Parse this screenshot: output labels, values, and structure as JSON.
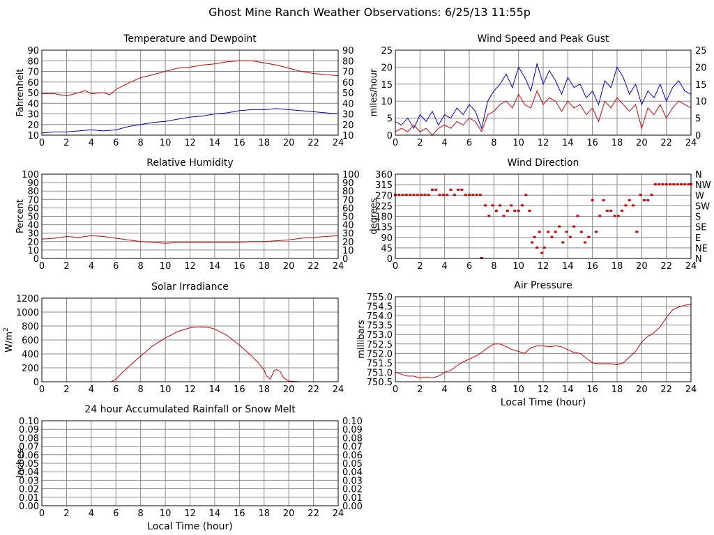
{
  "page_title": "Ghost Mine Ranch Weather Observations: 6/25/13 11:55p",
  "colors": {
    "primary": "#cc0000",
    "secondary": "#0000cc",
    "grid": "#888888",
    "frame": "#000000"
  },
  "chart_data": [
    {
      "id": "temp",
      "type": "line",
      "title": "Temperature and Dewpoint",
      "ylabel": "Fahrenheit",
      "xlabel": "",
      "xlim": [
        0,
        24
      ],
      "ylim": [
        10,
        90
      ],
      "grid": true,
      "x_ticks": [
        "0",
        "2",
        "4",
        "6",
        "8",
        "10",
        "12",
        "14",
        "16",
        "18",
        "20",
        "22",
        "24"
      ],
      "y_ticks": [
        "10",
        "20",
        "30",
        "40",
        "50",
        "60",
        "70",
        "80",
        "90"
      ],
      "y_ticks_right": [
        "10",
        "20",
        "30",
        "40",
        "50",
        "60",
        "70",
        "80",
        "90"
      ],
      "series": [
        {
          "color": "#cc0000",
          "x": [
            0,
            1,
            2,
            3,
            3.5,
            4,
            5,
            5.5,
            6,
            7,
            8,
            9,
            10,
            11,
            12,
            13,
            14,
            15,
            16,
            17,
            18,
            19,
            20,
            21,
            22,
            23,
            24
          ],
          "y": [
            49,
            49,
            47,
            50,
            52,
            49,
            50,
            48,
            53,
            59,
            64,
            67,
            70,
            73,
            74,
            76,
            77,
            79,
            80,
            80,
            78,
            76,
            73,
            70,
            68,
            67,
            66
          ]
        },
        {
          "color": "#0000cc",
          "x": [
            0,
            1,
            2,
            3,
            4,
            5,
            6,
            7,
            8,
            9,
            10,
            11,
            12,
            13,
            14,
            15,
            16,
            17,
            18,
            19,
            20,
            21,
            22,
            23,
            24
          ],
          "y": [
            12,
            13,
            13,
            14,
            15,
            14,
            15,
            18,
            20,
            22,
            23,
            25,
            27,
            28,
            30,
            31,
            33,
            34,
            34,
            35,
            34,
            33,
            32,
            31,
            30
          ]
        }
      ]
    },
    {
      "id": "wind",
      "type": "line",
      "title": "Wind Speed and Peak Gust",
      "ylabel": "miles/hour",
      "xlabel": "",
      "xlim": [
        0,
        24
      ],
      "ylim": [
        0,
        25
      ],
      "grid": true,
      "x_ticks": [
        "0",
        "2",
        "4",
        "6",
        "8",
        "10",
        "12",
        "14",
        "16",
        "18",
        "20",
        "22",
        "24"
      ],
      "y_ticks": [
        "0",
        "5",
        "10",
        "15",
        "20",
        "25"
      ],
      "y_ticks_right": [
        "0",
        "5",
        "10",
        "15",
        "20",
        "25"
      ],
      "series": [
        {
          "color": "#0000cc",
          "x": [
            0,
            0.5,
            1,
            1.5,
            2,
            2.5,
            3,
            3.5,
            4,
            4.5,
            5,
            5.5,
            6,
            6.5,
            7,
            7.5,
            8,
            8.5,
            9,
            9.5,
            10,
            10.5,
            11,
            11.5,
            12,
            12.5,
            13,
            13.5,
            14,
            14.5,
            15,
            15.5,
            16,
            16.5,
            17,
            17.5,
            18,
            18.5,
            19,
            19.5,
            20,
            20.5,
            21,
            21.5,
            22,
            22.5,
            23,
            23.5,
            24
          ],
          "y": [
            4,
            3,
            5,
            2,
            6,
            4,
            7,
            3,
            6,
            5,
            8,
            6,
            9,
            7,
            2,
            10,
            13,
            15,
            18,
            14,
            20,
            17,
            13,
            21,
            15,
            19,
            16,
            12,
            17,
            14,
            15,
            11,
            13,
            9,
            16,
            14,
            20,
            17,
            12,
            15,
            9,
            13,
            11,
            15,
            10,
            14,
            16,
            13,
            12
          ]
        },
        {
          "color": "#cc0000",
          "x": [
            0,
            0.5,
            1,
            1.5,
            2,
            2.5,
            3,
            3.5,
            4,
            4.5,
            5,
            5.5,
            6,
            6.5,
            7,
            7.5,
            8,
            8.5,
            9,
            9.5,
            10,
            10.5,
            11,
            11.5,
            12,
            12.5,
            13,
            13.5,
            14,
            14.5,
            15,
            15.5,
            16,
            16.5,
            17,
            17.5,
            18,
            18.5,
            19,
            19.5,
            20,
            20.5,
            21,
            21.5,
            22,
            22.5,
            23,
            23.5,
            24
          ],
          "y": [
            1,
            2,
            1,
            3,
            1,
            2,
            0,
            2,
            3,
            2,
            4,
            3,
            5,
            4,
            1,
            6,
            7,
            9,
            10,
            8,
            12,
            9,
            8,
            13,
            9,
            11,
            10,
            7,
            10,
            8,
            9,
            6,
            8,
            4,
            10,
            8,
            11,
            9,
            7,
            9,
            2,
            8,
            6,
            9,
            5,
            8,
            10,
            9,
            8
          ]
        }
      ]
    },
    {
      "id": "rh",
      "type": "line",
      "title": "Relative Humidity",
      "ylabel": "Percent",
      "xlabel": "",
      "xlim": [
        0,
        24
      ],
      "ylim": [
        0,
        100
      ],
      "grid": true,
      "x_ticks": [
        "0",
        "2",
        "4",
        "6",
        "8",
        "10",
        "12",
        "14",
        "16",
        "18",
        "20",
        "22",
        "24"
      ],
      "y_ticks": [
        "0",
        "10",
        "20",
        "30",
        "40",
        "50",
        "60",
        "70",
        "80",
        "90",
        "100"
      ],
      "y_ticks_right": [
        "0",
        "10",
        "20",
        "30",
        "40",
        "50",
        "60",
        "70",
        "80",
        "90",
        "100"
      ],
      "series": [
        {
          "color": "#cc0000",
          "x": [
            0,
            1,
            2,
            3,
            4,
            5,
            6,
            7,
            8,
            9,
            10,
            11,
            12,
            13,
            14,
            15,
            16,
            17,
            18,
            19,
            20,
            21,
            22,
            23,
            24
          ],
          "y": [
            23,
            24,
            26,
            25,
            27,
            26,
            24,
            22,
            20,
            19,
            18,
            19,
            19,
            19,
            19,
            19,
            19,
            20,
            20,
            21,
            22,
            24,
            25,
            26,
            27
          ]
        }
      ]
    },
    {
      "id": "wdir",
      "type": "scatter",
      "title": "Wind Direction",
      "ylabel": "degrees",
      "xlabel": "",
      "xlim": [
        0,
        24
      ],
      "ylim": [
        0,
        360
      ],
      "grid": true,
      "x_ticks": [
        "0",
        "2",
        "4",
        "6",
        "8",
        "10",
        "12",
        "14",
        "16",
        "18",
        "20",
        "22",
        "24"
      ],
      "y_ticks": [
        "0",
        "45",
        "90",
        "135",
        "180",
        "225",
        "270",
        "315",
        "360"
      ],
      "y_ticks_right": [
        "N",
        "NE",
        "E",
        "SE",
        "S",
        "SW",
        "W",
        "NW",
        "N"
      ],
      "series": [
        {
          "color": "#cc0000",
          "x": [
            0,
            0.3,
            0.6,
            0.9,
            1.2,
            1.5,
            1.8,
            2.1,
            2.4,
            2.7,
            3,
            3.3,
            3.6,
            3.9,
            4.2,
            4.5,
            4.8,
            5.1,
            5.4,
            5.7,
            6,
            6.3,
            6.6,
            6.9,
            7,
            7.3,
            7.6,
            7.9,
            8.2,
            8.5,
            8.8,
            9.1,
            9.4,
            9.7,
            10,
            10.3,
            10.6,
            10.9,
            11.1,
            11.3,
            11.5,
            11.7,
            11.9,
            12.1,
            12.4,
            12.7,
            13,
            13.3,
            13.6,
            13.9,
            14.2,
            14.5,
            14.8,
            15.1,
            15.4,
            15.7,
            16,
            16.3,
            16.6,
            16.9,
            17.2,
            17.5,
            17.8,
            18.1,
            18.4,
            18.7,
            19,
            19.3,
            19.6,
            19.9,
            20.2,
            20.5,
            20.8,
            21.1,
            21.4,
            21.7,
            22,
            22.3,
            22.6,
            22.9,
            23.2,
            23.5,
            23.8,
            24
          ],
          "y": [
            270,
            270,
            270,
            270,
            270,
            270,
            270,
            270,
            270,
            270,
            292,
            292,
            270,
            270,
            270,
            292,
            270,
            292,
            292,
            270,
            270,
            270,
            270,
            270,
            0,
            225,
            180,
            225,
            202,
            225,
            180,
            202,
            225,
            202,
            202,
            225,
            270,
            202,
            67,
            90,
            45,
            112,
            22,
            45,
            112,
            90,
            112,
            135,
            67,
            112,
            90,
            135,
            180,
            112,
            67,
            90,
            247,
            112,
            180,
            247,
            202,
            202,
            180,
            180,
            202,
            225,
            247,
            225,
            112,
            270,
            247,
            247,
            270,
            315,
            315,
            315,
            315,
            315,
            315,
            315,
            315,
            315,
            315,
            315
          ]
        }
      ]
    },
    {
      "id": "solar",
      "type": "area",
      "title": "Solar Irradiance",
      "ylabel": "W/m",
      "ylabel_sup": "2",
      "xlabel": "",
      "xlim": [
        0,
        24
      ],
      "ylim": [
        0,
        1300
      ],
      "grid": true,
      "x_ticks": [
        "0",
        "2",
        "4",
        "6",
        "8",
        "10",
        "12",
        "14",
        "16",
        "18",
        "20",
        "22",
        "24"
      ],
      "y_ticks": [
        "0",
        "200",
        "400",
        "600",
        "800",
        "1000",
        "1200"
      ],
      "series": [
        {
          "color": "#cc0000",
          "x": [
            0,
            1,
            2,
            3,
            4,
            5,
            5.6,
            6,
            6.5,
            7,
            8,
            9,
            10,
            11,
            12,
            12.5,
            13,
            13.5,
            14,
            15,
            16,
            17,
            17.5,
            18,
            18.2,
            18.5,
            18.8,
            19,
            19.3,
            19.6,
            20,
            21,
            22,
            23,
            24
          ],
          "y": [
            0,
            0,
            0,
            0,
            0,
            0,
            0,
            40,
            140,
            230,
            400,
            560,
            680,
            780,
            840,
            850,
            850,
            845,
            820,
            720,
            570,
            400,
            300,
            180,
            90,
            40,
            170,
            190,
            160,
            60,
            10,
            0,
            0,
            0,
            0
          ]
        }
      ]
    },
    {
      "id": "press",
      "type": "line",
      "title": "Air Pressure",
      "ylabel": "millibars",
      "xlabel": "Local Time (hour)",
      "xlim": [
        0,
        24
      ],
      "ylim": [
        750.5,
        755.0
      ],
      "grid": true,
      "x_ticks": [
        "0",
        "2",
        "4",
        "6",
        "8",
        "10",
        "12",
        "14",
        "16",
        "18",
        "20",
        "22",
        "24"
      ],
      "y_ticks": [
        "750.5",
        "751.0",
        "751.5",
        "752.0",
        "752.5",
        "753.0",
        "753.5",
        "754.0",
        "754.5",
        "755.0"
      ],
      "series": [
        {
          "color": "#cc0000",
          "x": [
            0,
            0.5,
            1,
            1.5,
            2,
            2.5,
            3,
            3.5,
            4,
            4.5,
            5,
            5.5,
            6,
            6.5,
            7,
            7.5,
            8,
            8.5,
            9,
            9.5,
            10,
            10.5,
            11,
            11.5,
            12,
            12.5,
            13,
            13.5,
            14,
            14.5,
            15,
            15.5,
            16,
            16.5,
            17,
            17.5,
            18,
            18.5,
            19,
            19.5,
            20,
            20.5,
            21,
            21.5,
            22,
            22.5,
            23,
            23.5,
            24
          ],
          "y": [
            751.0,
            750.9,
            750.8,
            750.8,
            750.7,
            750.75,
            750.7,
            750.8,
            751.0,
            751.1,
            751.35,
            751.55,
            751.7,
            751.85,
            752.05,
            752.3,
            752.5,
            752.5,
            752.35,
            752.2,
            752.1,
            752.0,
            752.3,
            752.4,
            752.4,
            752.35,
            752.4,
            752.35,
            752.2,
            752.05,
            752.0,
            751.75,
            751.5,
            751.45,
            751.45,
            751.45,
            751.4,
            751.5,
            751.8,
            752.1,
            752.6,
            752.9,
            753.1,
            753.4,
            753.9,
            754.3,
            754.45,
            754.55,
            754.6
          ]
        }
      ]
    },
    {
      "id": "rain",
      "type": "line",
      "title": "24 hour Accumulated Rainfall or Snow Melt",
      "ylabel": "Inches",
      "xlabel": "Local Time (hour)",
      "xlim": [
        0,
        24
      ],
      "ylim": [
        0,
        0.1
      ],
      "grid": true,
      "x_ticks": [
        "0",
        "2",
        "4",
        "6",
        "8",
        "10",
        "12",
        "14",
        "16",
        "18",
        "20",
        "22",
        "24"
      ],
      "y_ticks": [
        "0.00",
        "0.01",
        "0.02",
        "0.03",
        "0.04",
        "0.05",
        "0.06",
        "0.07",
        "0.08",
        "0.09",
        "0.10"
      ],
      "y_ticks_right": [
        "0.00",
        "0.01",
        "0.02",
        "0.03",
        "0.04",
        "0.05",
        "0.06",
        "0.07",
        "0.08",
        "0.09",
        "0.10"
      ],
      "series": [
        {
          "color": "#cc0000",
          "x": [
            0,
            24
          ],
          "y": [
            0,
            0
          ]
        }
      ]
    }
  ]
}
